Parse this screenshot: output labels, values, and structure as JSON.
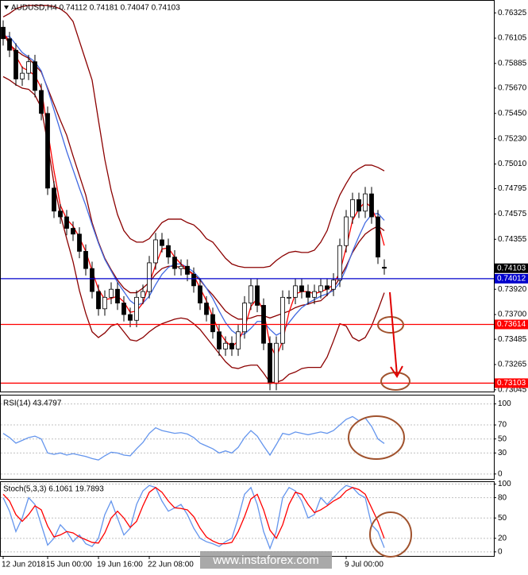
{
  "chart_data": [
    {
      "type": "candlestick",
      "title": "AUDUSD,H4 0.74112 0.74181 0.74047 0.74103",
      "categories": [
        "12 Jun 2018",
        null,
        null,
        null,
        null,
        null,
        null,
        "15 Jun 00:00",
        null,
        null,
        null,
        null,
        null,
        null,
        null,
        "19 Jun 16:00",
        null,
        null,
        null,
        null,
        null,
        null,
        null,
        "22 Jun 08:00",
        null,
        null,
        null,
        null,
        null,
        null,
        null,
        null,
        null,
        null,
        null,
        null,
        null,
        null,
        null,
        null,
        null,
        null,
        null,
        null,
        null,
        null,
        null,
        null,
        null,
        null,
        null,
        null,
        null,
        null,
        "9 Jul 00:00",
        null,
        null,
        null,
        null,
        null,
        null
      ],
      "open": [
        0.762,
        0.761,
        0.76,
        0.7575,
        0.758,
        0.759,
        0.7565,
        0.7545,
        0.748,
        0.746,
        0.7455,
        0.7445,
        0.744,
        0.7425,
        0.741,
        0.739,
        0.7375,
        0.7385,
        0.7392,
        0.738,
        0.737,
        0.7365,
        0.7385,
        0.739,
        0.7415,
        0.7435,
        0.743,
        0.742,
        0.741,
        0.7412,
        0.7405,
        0.7395,
        0.738,
        0.737,
        0.7355,
        0.734,
        0.7345,
        0.734,
        0.7355,
        0.738,
        0.7395,
        0.7378,
        0.7345,
        0.731,
        0.7345,
        0.7385,
        0.7385,
        0.7395,
        0.739,
        0.7385,
        0.739,
        0.7395,
        0.7392,
        0.74,
        0.743,
        0.7455,
        0.747,
        0.746,
        0.7475,
        0.7455,
        0.74112
      ],
      "high": [
        0.7626,
        0.7616,
        0.7606,
        0.7586,
        0.7596,
        0.7596,
        0.7571,
        0.7551,
        0.7486,
        0.7466,
        0.7461,
        0.7451,
        0.7446,
        0.7431,
        0.7416,
        0.7396,
        0.7391,
        0.7398,
        0.7398,
        0.7386,
        0.7376,
        0.7391,
        0.7396,
        0.7421,
        0.7441,
        0.7441,
        0.7436,
        0.7426,
        0.7418,
        0.7418,
        0.7411,
        0.7401,
        0.7386,
        0.7376,
        0.7361,
        0.7351,
        0.7351,
        0.7361,
        0.7386,
        0.7401,
        0.7401,
        0.7384,
        0.7351,
        0.7351,
        0.7391,
        0.7391,
        0.7401,
        0.7401,
        0.7396,
        0.7396,
        0.7401,
        0.7401,
        0.7406,
        0.7436,
        0.7461,
        0.7476,
        0.7476,
        0.7481,
        0.7481,
        0.7461,
        0.74181
      ],
      "low": [
        0.7604,
        0.7594,
        0.7569,
        0.7569,
        0.7574,
        0.7559,
        0.7539,
        0.7474,
        0.7454,
        0.7449,
        0.7439,
        0.7434,
        0.7419,
        0.7404,
        0.7384,
        0.7369,
        0.7369,
        0.7379,
        0.7374,
        0.7364,
        0.7359,
        0.7359,
        0.7379,
        0.7384,
        0.7409,
        0.7424,
        0.7414,
        0.7404,
        0.7404,
        0.7399,
        0.7389,
        0.7374,
        0.7364,
        0.7349,
        0.7334,
        0.7334,
        0.7334,
        0.7334,
        0.7349,
        0.7374,
        0.7372,
        0.7339,
        0.7304,
        0.7304,
        0.7339,
        0.7379,
        0.7379,
        0.7384,
        0.7379,
        0.7379,
        0.7384,
        0.7386,
        0.7386,
        0.7394,
        0.7424,
        0.7449,
        0.7454,
        0.7454,
        0.7449,
        0.7414,
        0.74047
      ],
      "close": [
        0.761,
        0.76,
        0.7575,
        0.758,
        0.759,
        0.7565,
        0.7545,
        0.748,
        0.746,
        0.7455,
        0.7445,
        0.744,
        0.7425,
        0.741,
        0.739,
        0.7375,
        0.7385,
        0.7392,
        0.738,
        0.737,
        0.7365,
        0.7385,
        0.739,
        0.7415,
        0.7435,
        0.743,
        0.742,
        0.741,
        0.7412,
        0.7405,
        0.7395,
        0.738,
        0.737,
        0.7355,
        0.734,
        0.7345,
        0.734,
        0.7355,
        0.738,
        0.7395,
        0.7378,
        0.7345,
        0.731,
        0.7345,
        0.7385,
        0.7385,
        0.7395,
        0.739,
        0.7385,
        0.739,
        0.7395,
        0.7392,
        0.74,
        0.743,
        0.7455,
        0.747,
        0.746,
        0.7475,
        0.7455,
        0.742,
        0.74103
      ],
      "up_color": "#ffffff",
      "down_color": "#000000",
      "lines": [
        {
          "color": "#8b0000",
          "values": [
            0.7629,
            0.7632,
            0.7636,
            0.7638,
            0.7639,
            0.7639,
            0.7639,
            0.7639,
            0.7638,
            0.7636,
            0.7632,
            0.7625,
            0.7608,
            0.7591,
            0.7574,
            0.7539,
            0.7505,
            0.7478,
            0.7457,
            0.7443,
            0.7436,
            0.7433,
            0.7433,
            0.7436,
            0.7443,
            0.745,
            0.7453,
            0.7453,
            0.7453,
            0.745,
            0.7448,
            0.7443,
            0.7436,
            0.7433,
            0.7426,
            0.7419,
            0.7414,
            0.7412,
            0.7411,
            0.7411,
            0.7411,
            0.7411,
            0.7412,
            0.7417,
            0.7421,
            0.7424,
            0.7425,
            0.7424,
            0.7424,
            0.7426,
            0.7433,
            0.7443,
            0.746,
            0.7474,
            0.7484,
            0.7493,
            0.7497,
            0.75,
            0.75,
            0.7498,
            0.7495
          ]
        },
        {
          "color": "#8b0000",
          "values": [
            0.7615,
            0.7605,
            0.76,
            0.7596,
            0.7593,
            0.7587,
            0.7581,
            0.7567,
            0.7553,
            0.7539,
            0.7526,
            0.7508,
            0.7491,
            0.7474,
            0.745,
            0.7433,
            0.7419,
            0.7409,
            0.74,
            0.7393,
            0.7389,
            0.7389,
            0.7393,
            0.7398,
            0.7405,
            0.741,
            0.7412,
            0.7412,
            0.7411,
            0.7409,
            0.7405,
            0.74,
            0.7393,
            0.7387,
            0.738,
            0.7373,
            0.7369,
            0.7366,
            0.7366,
            0.7367,
            0.7369,
            0.7369,
            0.7367,
            0.7369,
            0.7371,
            0.7373,
            0.7376,
            0.7378,
            0.7379,
            0.7381,
            0.7382,
            0.7387,
            0.7393,
            0.7402,
            0.7412,
            0.7424,
            0.7433,
            0.744,
            0.7444,
            0.7447,
            0.7443
          ]
        },
        {
          "color": "#8b0000",
          "values": [
            0.7577,
            0.7574,
            0.757,
            0.7567,
            0.7566,
            0.7561,
            0.755,
            0.7519,
            0.7484,
            0.7457,
            0.7436,
            0.7416,
            0.7391,
            0.7371,
            0.7355,
            0.735,
            0.7354,
            0.736,
            0.7362,
            0.7355,
            0.7348,
            0.7347,
            0.735,
            0.7355,
            0.7359,
            0.7362,
            0.7364,
            0.7366,
            0.7367,
            0.7366,
            0.7362,
            0.7357,
            0.735,
            0.7343,
            0.7336,
            0.7329,
            0.7324,
            0.7323,
            0.7325,
            0.7326,
            0.7326,
            0.7319,
            0.7311,
            0.7311,
            0.7313,
            0.7318,
            0.732,
            0.7323,
            0.7324,
            0.7324,
            0.7324,
            0.7333,
            0.7347,
            0.7362,
            0.736,
            0.735,
            0.7347,
            0.735,
            0.736,
            0.7374,
            0.7389
          ]
        },
        {
          "color": "#4169e1",
          "values": [
            0.7612,
            0.7612,
            0.7605,
            0.7598,
            0.7594,
            0.759,
            0.7582,
            0.7566,
            0.7548,
            0.753,
            0.7512,
            0.7496,
            0.748,
            0.7465,
            0.7448,
            0.7432,
            0.7418,
            0.7408,
            0.7398,
            0.739,
            0.7382,
            0.7378,
            0.738,
            0.7386,
            0.7396,
            0.7405,
            0.7411,
            0.7414,
            0.7414,
            0.7411,
            0.7407,
            0.7401,
            0.7393,
            0.7384,
            0.7373,
            0.7363,
            0.7356,
            0.7352,
            0.7353,
            0.7358,
            0.7364,
            0.7364,
            0.7357,
            0.7352,
            0.7355,
            0.7363,
            0.737,
            0.7376,
            0.738,
            0.7383,
            0.7386,
            0.7388,
            0.7391,
            0.7398,
            0.741,
            0.7425,
            0.7438,
            0.745,
            0.7457,
            0.7458,
            0.7452
          ]
        },
        {
          "color": "#ff0000",
          "values": [
            0.7615,
            0.7608,
            0.7595,
            0.7585,
            0.7582,
            0.7578,
            0.7567,
            0.753,
            0.7495,
            0.7465,
            0.7453,
            0.7447,
            0.7437,
            0.7425,
            0.7408,
            0.7392,
            0.7383,
            0.7384,
            0.7386,
            0.7381,
            0.7372,
            0.7373,
            0.738,
            0.7397,
            0.7413,
            0.7427,
            0.7428,
            0.742,
            0.7414,
            0.7409,
            0.7404,
            0.7393,
            0.7382,
            0.7368,
            0.7355,
            0.7347,
            0.7342,
            0.7347,
            0.7358,
            0.7377,
            0.7384,
            0.7373,
            0.7344,
            0.7333,
            0.7347,
            0.7372,
            0.7388,
            0.739,
            0.739,
            0.7388,
            0.739,
            0.7392,
            0.7396,
            0.7407,
            0.7428,
            0.7452,
            0.7462,
            0.7468,
            0.7463,
            0.745,
            0.743
          ]
        }
      ],
      "levels": [
        {
          "value": 0.74012,
          "color": "#0000cc"
        },
        {
          "value": 0.73614,
          "color": "#ff0000"
        },
        {
          "value": 0.73103,
          "color": "#ff0000"
        }
      ],
      "last_price": {
        "value": 0.74103,
        "color": "#000000"
      },
      "ylim": [
        0.7303,
        0.7643
      ],
      "yticks": [
        0.76325,
        0.76105,
        0.75885,
        {
          "value": 0.7567,
          "label": "0.75670"
        },
        {
          "value": 0.7545,
          "label": "0.75450"
        },
        {
          "value": 0.7523,
          "label": "0.75230"
        },
        {
          "value": 0.7501,
          "label": "0.75010"
        },
        0.74795,
        0.74575,
        0.74355,
        {
          "value": 0.7392,
          "label": "0.73920"
        },
        {
          "value": 0.737,
          "label": "0.73700"
        },
        0.73485,
        0.73265,
        0.73045
      ],
      "grid": false
    },
    {
      "type": "line",
      "title": "RSI(14) 43.4797",
      "lines": [
        {
          "color": "#6495ed",
          "values": [
            58,
            52,
            44,
            48,
            52,
            54,
            50,
            30,
            28,
            30,
            27,
            29,
            27,
            25,
            22,
            20,
            26,
            31,
            30,
            27,
            26,
            36,
            45,
            58,
            66,
            62,
            60,
            58,
            59,
            57,
            52,
            44,
            40,
            36,
            30,
            33,
            30,
            38,
            52,
            62,
            54,
            40,
            27,
            42,
            58,
            56,
            60,
            58,
            56,
            58,
            60,
            58,
            62,
            70,
            78,
            82,
            76,
            80,
            68,
            50,
            43.4797
          ]
        }
      ],
      "ylim": [
        -7,
        112
      ],
      "yticks": [
        0,
        30,
        50,
        70,
        100
      ],
      "grid": true
    },
    {
      "type": "line",
      "title": "Stoch(5,3,3) 6.1061 19.7893",
      "lines": [
        {
          "color": "#6495ed",
          "values": [
            80,
            60,
            30,
            50,
            80,
            70,
            40,
            10,
            20,
            40,
            30,
            15,
            25,
            12,
            8,
            20,
            55,
            75,
            50,
            25,
            35,
            70,
            90,
            98,
            95,
            75,
            60,
            65,
            70,
            55,
            35,
            20,
            15,
            12,
            8,
            15,
            20,
            50,
            85,
            95,
            70,
            30,
            5,
            30,
            80,
            95,
            90,
            75,
            50,
            55,
            80,
            70,
            80,
            90,
            98,
            95,
            85,
            80,
            40,
            30,
            6.1061
          ]
        },
        {
          "color": "#ff0000",
          "values": [
            85,
            75,
            55,
            45,
            55,
            68,
            62,
            38,
            22,
            25,
            30,
            28,
            22,
            18,
            14,
            13,
            28,
            50,
            60,
            50,
            36,
            45,
            68,
            88,
            95,
            88,
            75,
            65,
            64,
            62,
            52,
            35,
            22,
            16,
            12,
            12,
            14,
            30,
            52,
            78,
            85,
            62,
            32,
            20,
            40,
            70,
            88,
            85,
            70,
            58,
            62,
            68,
            75,
            80,
            90,
            95,
            92,
            85,
            65,
            45,
            19.7893
          ]
        }
      ],
      "ylim": [
        -6,
        103
      ],
      "yticks": [
        0,
        20,
        50,
        80,
        100
      ],
      "grid": true
    }
  ],
  "watermark": "www.instaforex.com"
}
